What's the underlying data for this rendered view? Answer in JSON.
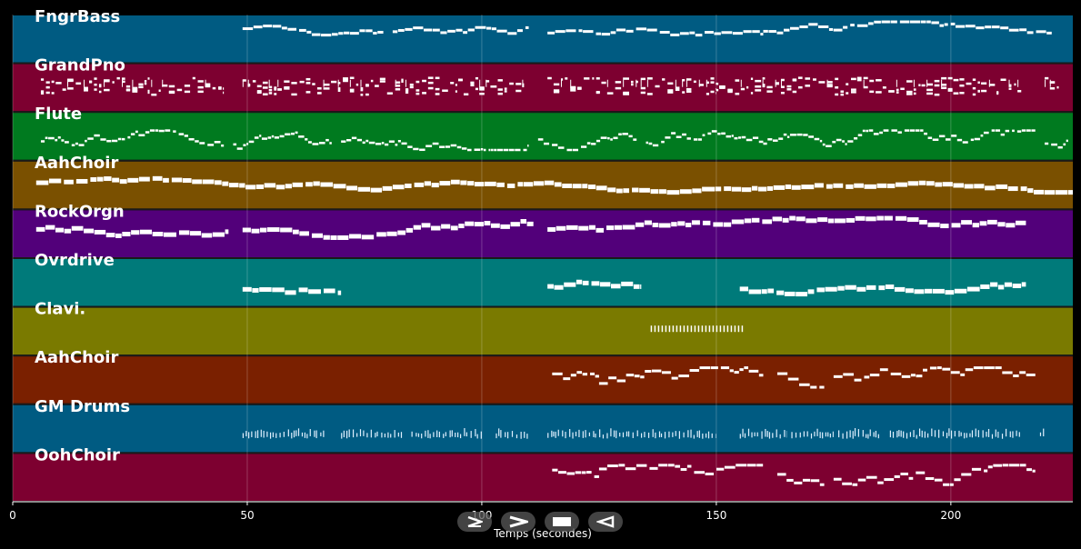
{
  "chart_data": {
    "type": "piano-roll",
    "xlabel": "Temps (secondes)",
    "xlim": [
      0,
      226
    ],
    "xticks": [
      0,
      50,
      100,
      150,
      200
    ],
    "grid": true,
    "tracks": [
      {
        "name": "FngrBass",
        "color": "#005b82",
        "style": "line",
        "level": 0.35,
        "jitter": 0.12,
        "segments": [
          [
            49,
            79
          ],
          [
            81,
            110
          ],
          [
            114,
            147
          ],
          [
            147.5,
            160
          ],
          [
            160,
            221.5
          ]
        ]
      },
      {
        "name": "GrandPno",
        "color": "#7d0030",
        "style": "dense",
        "level": 0.45,
        "jitter": 0.35,
        "segments": [
          [
            6,
            45
          ],
          [
            49,
            109
          ],
          [
            114,
            150
          ],
          [
            150,
            215
          ],
          [
            220,
            223
          ]
        ]
      },
      {
        "name": "Flute",
        "color": "#007a1f",
        "style": "thin",
        "level": 0.58,
        "jitter": 0.18,
        "segments": [
          [
            6,
            45
          ],
          [
            47,
            68
          ],
          [
            70,
            110
          ],
          [
            112,
            133
          ],
          [
            135,
            160
          ],
          [
            160,
            218
          ],
          [
            220,
            225
          ]
        ]
      },
      {
        "name": "AahChoir",
        "color": "#7a5000",
        "style": "thick",
        "level": 0.45,
        "jitter": 0.08,
        "segments": [
          [
            5,
            226
          ]
        ]
      },
      {
        "name": "RockOrgn",
        "color": "#52007a",
        "style": "thick",
        "level": 0.38,
        "jitter": 0.12,
        "segments": [
          [
            5,
            46
          ],
          [
            49,
            111
          ],
          [
            114,
            216
          ]
        ]
      },
      {
        "name": "Ovrdrive",
        "color": "#007a7a",
        "style": "thick",
        "level": 0.6,
        "jitter": 0.12,
        "segments": [
          [
            49,
            70
          ],
          [
            114,
            134
          ],
          [
            155,
            216
          ]
        ]
      },
      {
        "name": "Clavi.",
        "color": "#7a7a00",
        "style": "ticks",
        "level": 0.45,
        "jitter": 0.08,
        "segments": [
          [
            136,
            156
          ]
        ]
      },
      {
        "name": "AahChoir",
        "color": "#7a2000",
        "style": "line",
        "level": 0.45,
        "jitter": 0.25,
        "segments": [
          [
            115,
            125
          ],
          [
            125,
            160
          ],
          [
            163,
            173
          ],
          [
            175,
            218
          ]
        ]
      },
      {
        "name": "GM Drums",
        "color": "#005b82",
        "style": "drums",
        "level": 0.68,
        "jitter": 0.1,
        "segments": [
          [
            49,
            67
          ],
          [
            70,
            83
          ],
          [
            85,
            100
          ],
          [
            103,
            110
          ],
          [
            114,
            150
          ],
          [
            155,
            165
          ],
          [
            166,
            175
          ],
          [
            176,
            185
          ],
          [
            187,
            215
          ],
          [
            219,
            220
          ]
        ]
      },
      {
        "name": "OohChoir",
        "color": "#7d0030",
        "style": "line",
        "level": 0.45,
        "jitter": 0.25,
        "segments": [
          [
            115,
            125
          ],
          [
            125,
            160
          ],
          [
            163,
            173
          ],
          [
            175,
            218
          ]
        ]
      }
    ]
  },
  "controls": [
    {
      "name": "play-button",
      "icon": "play-icon"
    },
    {
      "name": "fast-forward-button",
      "icon": "fast-forward-icon"
    },
    {
      "name": "stop-button",
      "icon": "stop-icon"
    },
    {
      "name": "rewind-button",
      "icon": "rewind-icon"
    }
  ]
}
